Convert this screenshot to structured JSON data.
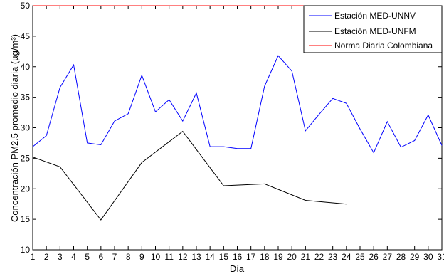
{
  "chart_data": {
    "type": "line",
    "xlabel": "Día",
    "ylabel": "Concentración PM2.5 promedio diaria (µg/m³)",
    "xlim": [
      1,
      31
    ],
    "ylim": [
      10,
      50
    ],
    "xticks": [
      1,
      2,
      3,
      4,
      5,
      6,
      7,
      8,
      9,
      10,
      11,
      12,
      13,
      14,
      15,
      16,
      17,
      18,
      19,
      20,
      21,
      22,
      23,
      24,
      25,
      26,
      27,
      28,
      29,
      30,
      31
    ],
    "yticks": [
      10,
      15,
      20,
      25,
      30,
      35,
      40,
      45,
      50
    ],
    "grid": false,
    "legend_position": "top-right",
    "series": [
      {
        "name": "Estación MED-UNNV",
        "color": "#0000ff",
        "x": [
          1,
          2,
          3,
          4,
          5,
          6,
          7,
          8,
          9,
          10,
          11,
          12,
          13,
          14,
          15,
          16,
          17,
          18,
          19,
          20,
          21,
          22,
          23,
          24,
          25,
          26,
          27,
          28,
          29,
          30,
          31
        ],
        "y": [
          26.9,
          28.7,
          36.6,
          40.3,
          27.5,
          27.2,
          31.1,
          32.3,
          38.6,
          32.6,
          34.6,
          31.1,
          35.7,
          26.9,
          26.9,
          26.6,
          26.6,
          36.8,
          41.8,
          39.3,
          29.5,
          32.2,
          34.8,
          34.0,
          29.8,
          25.9,
          31.0,
          26.8,
          27.9,
          32.1,
          27.1
        ]
      },
      {
        "name": "Estación MED-UNFM",
        "color": "#000000",
        "x": [
          1,
          3,
          6,
          9,
          12,
          15,
          18,
          21,
          24
        ],
        "y": [
          25.2,
          23.6,
          14.9,
          24.3,
          29.4,
          20.5,
          20.8,
          18.1,
          17.5
        ]
      },
      {
        "name": "Norma Diaria Colombiana",
        "color": "#ff0000",
        "x": [
          1,
          31
        ],
        "y": [
          50,
          50
        ]
      }
    ]
  }
}
